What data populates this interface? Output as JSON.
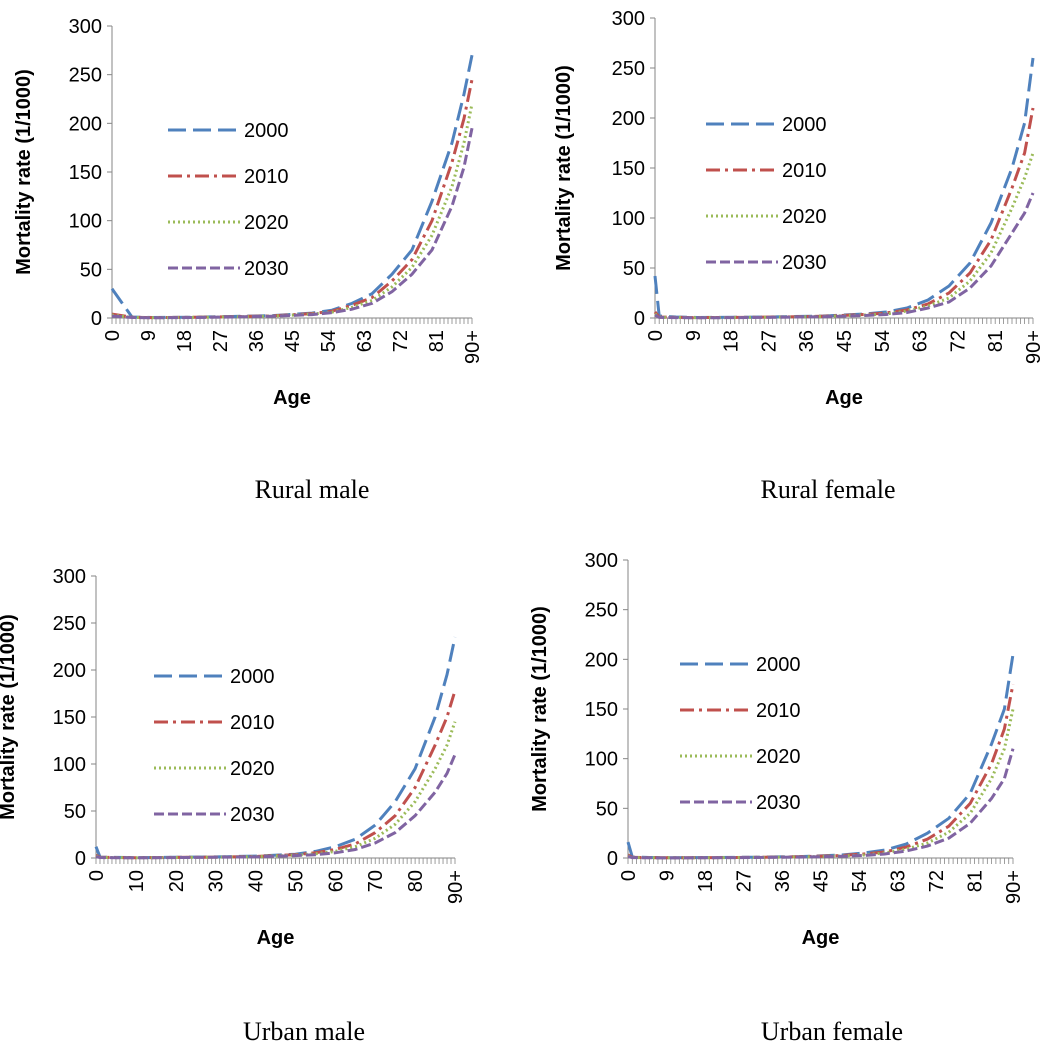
{
  "chart_data": [
    {
      "type": "line",
      "caption": "Rural male",
      "xlabel": "Age",
      "ylabel": "Mortality rate (1/1000)",
      "ylim": [
        0,
        300
      ],
      "yticks": [
        "0",
        "50",
        "100",
        "150",
        "200",
        "250",
        "300"
      ],
      "x_tick_labels": [
        "0",
        "9",
        "18",
        "27",
        "36",
        "45",
        "54",
        "63",
        "72",
        "81",
        "90+"
      ],
      "x": [
        0,
        5,
        10,
        20,
        30,
        40,
        50,
        55,
        60,
        65,
        70,
        75,
        80,
        85,
        88,
        90
      ],
      "series": [
        {
          "name": "2000",
          "values": [
            30,
            1,
            0.5,
            0.8,
            1.5,
            2.5,
            5,
            8,
            15,
            25,
            45,
            70,
            120,
            180,
            230,
            270
          ]
        },
        {
          "name": "2010",
          "values": [
            4,
            0.8,
            0.4,
            0.7,
            1.3,
            2.2,
            4.5,
            7,
            13,
            21,
            38,
            60,
            100,
            160,
            205,
            245
          ]
        },
        {
          "name": "2020",
          "values": [
            3,
            0.6,
            0.3,
            0.6,
            1.1,
            2,
            4,
            6,
            11,
            18,
            32,
            52,
            85,
            135,
            180,
            220
          ]
        },
        {
          "name": "2030",
          "values": [
            2,
            0.5,
            0.2,
            0.5,
            1,
            1.8,
            3.5,
            5.5,
            9,
            15,
            27,
            45,
            70,
            115,
            155,
            195
          ]
        }
      ],
      "legend": "inside-left"
    },
    {
      "type": "line",
      "caption": "Rural female",
      "xlabel": "Age",
      "ylabel": "Mortality rate (1/1000)",
      "ylim": [
        0,
        300
      ],
      "yticks": [
        "0",
        "50",
        "100",
        "150",
        "200",
        "250",
        "300"
      ],
      "x_tick_labels": [
        "0",
        "9",
        "18",
        "27",
        "36",
        "45",
        "54",
        "63",
        "72",
        "81",
        "90+"
      ],
      "x": [
        0,
        1,
        5,
        10,
        20,
        30,
        40,
        50,
        55,
        60,
        65,
        70,
        75,
        80,
        85,
        88,
        90
      ],
      "series": [
        {
          "name": "2000",
          "values": [
            42,
            2,
            1,
            0.5,
            0.7,
            1.2,
            2,
            4,
            6,
            10,
            18,
            32,
            55,
            95,
            150,
            195,
            260
          ]
        },
        {
          "name": "2010",
          "values": [
            6,
            1,
            0.6,
            0.4,
            0.6,
            1,
            1.8,
            3.5,
            5,
            8,
            14,
            25,
            45,
            78,
            130,
            165,
            210
          ]
        },
        {
          "name": "2020",
          "values": [
            4,
            0.8,
            0.5,
            0.3,
            0.5,
            0.9,
            1.5,
            3,
            4,
            7,
            12,
            20,
            37,
            65,
            110,
            140,
            165
          ]
        },
        {
          "name": "2030",
          "values": [
            3,
            0.6,
            0.4,
            0.2,
            0.4,
            0.8,
            1.3,
            2.5,
            3.5,
            5.5,
            10,
            16,
            30,
            52,
            85,
            105,
            125
          ]
        }
      ],
      "legend": "inside-left"
    },
    {
      "type": "line",
      "caption": "Urban male",
      "xlabel": "Age",
      "ylabel": "Mortality rate (1/1000)",
      "ylim": [
        0,
        300
      ],
      "yticks": [
        "0",
        "50",
        "100",
        "150",
        "200",
        "250",
        "300"
      ],
      "x_tick_labels": [
        "0",
        "10",
        "20",
        "30",
        "40",
        "50",
        "60",
        "70",
        "80",
        "90+"
      ],
      "x": [
        0,
        1,
        5,
        10,
        20,
        30,
        40,
        50,
        55,
        60,
        65,
        70,
        75,
        80,
        85,
        88,
        90
      ],
      "series": [
        {
          "name": "2000",
          "values": [
            12,
            1,
            0.6,
            0.4,
            0.7,
            1.2,
            2,
            4,
            7,
            12,
            20,
            35,
            60,
            95,
            150,
            195,
            235
          ]
        },
        {
          "name": "2010",
          "values": [
            3,
            0.8,
            0.5,
            0.3,
            0.6,
            1,
            1.7,
            3.5,
            5.5,
            9,
            15,
            27,
            45,
            75,
            120,
            150,
            178
          ]
        },
        {
          "name": "2020",
          "values": [
            2,
            0.6,
            0.4,
            0.3,
            0.5,
            0.9,
            1.5,
            3,
            4.5,
            7,
            12,
            21,
            36,
            60,
            95,
            120,
            145
          ]
        },
        {
          "name": "2030",
          "values": [
            1.5,
            0.5,
            0.3,
            0.2,
            0.4,
            0.8,
            1.2,
            2.5,
            3.5,
            5.5,
            9,
            16,
            27,
            45,
            70,
            90,
            110
          ]
        }
      ],
      "legend": "inside-left"
    },
    {
      "type": "line",
      "caption": "Urban female",
      "xlabel": "Age",
      "ylabel": "Mortality rate (1/1000)",
      "ylim": [
        0,
        300
      ],
      "yticks": [
        "0",
        "50",
        "100",
        "150",
        "200",
        "250",
        "300"
      ],
      "x_tick_labels": [
        "0",
        "9",
        "18",
        "27",
        "36",
        "45",
        "54",
        "63",
        "72",
        "81",
        "90+"
      ],
      "x": [
        0,
        1,
        5,
        10,
        20,
        30,
        40,
        50,
        55,
        60,
        65,
        70,
        75,
        80,
        85,
        88,
        90
      ],
      "series": [
        {
          "name": "2000",
          "values": [
            16,
            1,
            0.5,
            0.3,
            0.5,
            0.8,
            1.4,
            3,
            5,
            8,
            14,
            25,
            40,
            65,
            115,
            150,
            205
          ]
        },
        {
          "name": "2010",
          "values": [
            3,
            0.7,
            0.4,
            0.2,
            0.4,
            0.7,
            1.2,
            2.5,
            4,
            6,
            11,
            19,
            32,
            55,
            95,
            130,
            175
          ]
        },
        {
          "name": "2020",
          "values": [
            2,
            0.5,
            0.3,
            0.2,
            0.3,
            0.6,
            1,
            2,
            3,
            5,
            9,
            15,
            26,
            45,
            80,
            110,
            150
          ]
        },
        {
          "name": "2030",
          "values": [
            1.5,
            0.4,
            0.2,
            0.1,
            0.3,
            0.5,
            0.9,
            1.7,
            2.5,
            4,
            7,
            12,
            20,
            35,
            60,
            80,
            110
          ]
        }
      ],
      "legend": "inside-left"
    }
  ],
  "series_styles": [
    {
      "color": "#4F81BD",
      "dash": "18,7"
    },
    {
      "color": "#C0504D",
      "dash": "14,5,3,5"
    },
    {
      "color": "#9BBB59",
      "dash": "2,3"
    },
    {
      "color": "#8064A2",
      "dash": "10,4"
    }
  ]
}
